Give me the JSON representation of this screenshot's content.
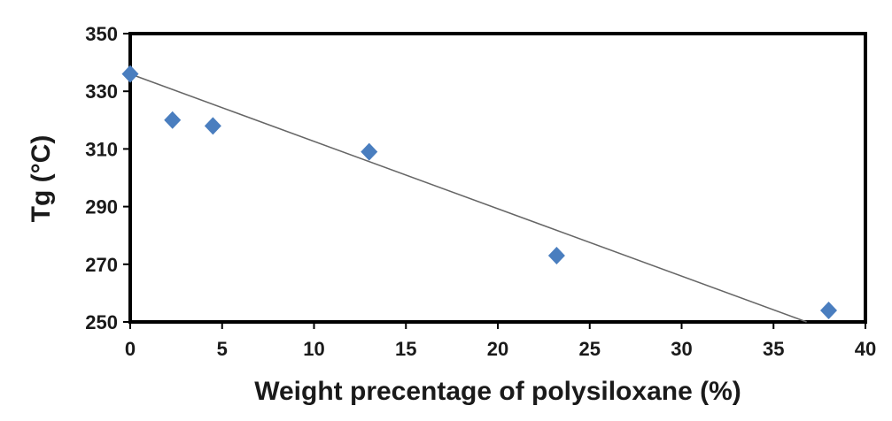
{
  "chart_data": {
    "type": "scatter",
    "title": "",
    "xlabel": "Weight precentage of polysiloxane (%)",
    "ylabel": "Tg (°C)",
    "xlim": [
      0,
      40
    ],
    "ylim": [
      250,
      350
    ],
    "xticks": [
      0,
      5,
      10,
      15,
      20,
      25,
      30,
      35,
      40
    ],
    "yticks": [
      250,
      270,
      290,
      310,
      330,
      350
    ],
    "grid": false,
    "legend": "none",
    "series": [
      {
        "marker": "diamond",
        "color": "#4a7ebf",
        "x": [
          0,
          2.3,
          4.5,
          13,
          23.2,
          38
        ],
        "y": [
          336,
          320,
          318,
          309,
          273,
          254
        ]
      }
    ],
    "trendline": {
      "type": "linear",
      "color": "#666666",
      "x": [
        0,
        36.8
      ],
      "y": [
        336,
        250
      ]
    }
  }
}
